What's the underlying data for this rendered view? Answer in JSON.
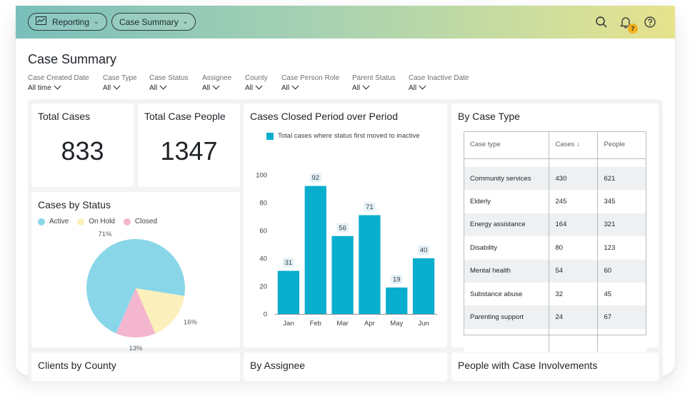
{
  "topbar": {
    "reporting_label": "Reporting",
    "case_summary_label": "Case Summary",
    "notification_count": "7"
  },
  "page": {
    "title": "Case Summary"
  },
  "filters": [
    {
      "label": "Case Created Date",
      "value": "All time"
    },
    {
      "label": "Case Type",
      "value": "All"
    },
    {
      "label": "Case Status",
      "value": "All"
    },
    {
      "label": "Assignee",
      "value": "All"
    },
    {
      "label": "County",
      "value": "All"
    },
    {
      "label": "Case Person Role",
      "value": "All"
    },
    {
      "label": "Parent Status",
      "value": "All"
    },
    {
      "label": "Case Inactive Date",
      "value": "All"
    }
  ],
  "cards": {
    "total_cases": {
      "title": "Total Cases",
      "value": "833"
    },
    "total_people": {
      "title": "Total Case People",
      "value": "1347"
    },
    "cases_by_status": {
      "title": "Cases by Status"
    },
    "cases_closed": {
      "title": "Cases Closed Period over Period"
    },
    "by_case_type": {
      "title": "By Case Type"
    },
    "clients_by_county": {
      "title": "Clients by County"
    },
    "by_assignee": {
      "title": "By Assignee"
    },
    "people_involvements": {
      "title": "People with Case Involvements"
    }
  },
  "colors": {
    "active": "#89d6e9",
    "on_hold": "#fbefbb",
    "closed": "#f4b6cf",
    "bar": "#09aecf"
  },
  "chart_data": [
    {
      "type": "pie",
      "title": "Cases by Status",
      "categories": [
        "Active",
        "On Hold",
        "Closed"
      ],
      "values": [
        71,
        16,
        13
      ],
      "data_labels": [
        "71%",
        "16%",
        "13%"
      ],
      "legend_position": "top-left"
    },
    {
      "type": "bar",
      "title": "Cases Closed Period over Period",
      "series": [
        {
          "name": "Total cases where status first moved to inactive",
          "values": [
            31,
            92,
            56,
            71,
            19,
            40
          ]
        }
      ],
      "categories": [
        "Jan",
        "Feb",
        "Mar",
        "Apr",
        "May",
        "Jun"
      ],
      "ylim": [
        0,
        100
      ],
      "yticks": [
        0,
        20,
        40,
        60,
        80,
        100
      ],
      "legend_position": "top"
    }
  ],
  "case_type_table": {
    "headers": [
      "Case type",
      "Cases",
      "People"
    ],
    "sort_icon": "arrow-down-icon",
    "rows": [
      [
        "Community services",
        "430",
        "621"
      ],
      [
        "Elderly",
        "245",
        "345"
      ],
      [
        "Energy assistance",
        "164",
        "321"
      ],
      [
        "Disability",
        "80",
        "123"
      ],
      [
        "Mental health",
        "54",
        "60"
      ],
      [
        "Substance abuse",
        "32",
        "45"
      ],
      [
        "Parenting support",
        "24",
        "67"
      ]
    ]
  }
}
